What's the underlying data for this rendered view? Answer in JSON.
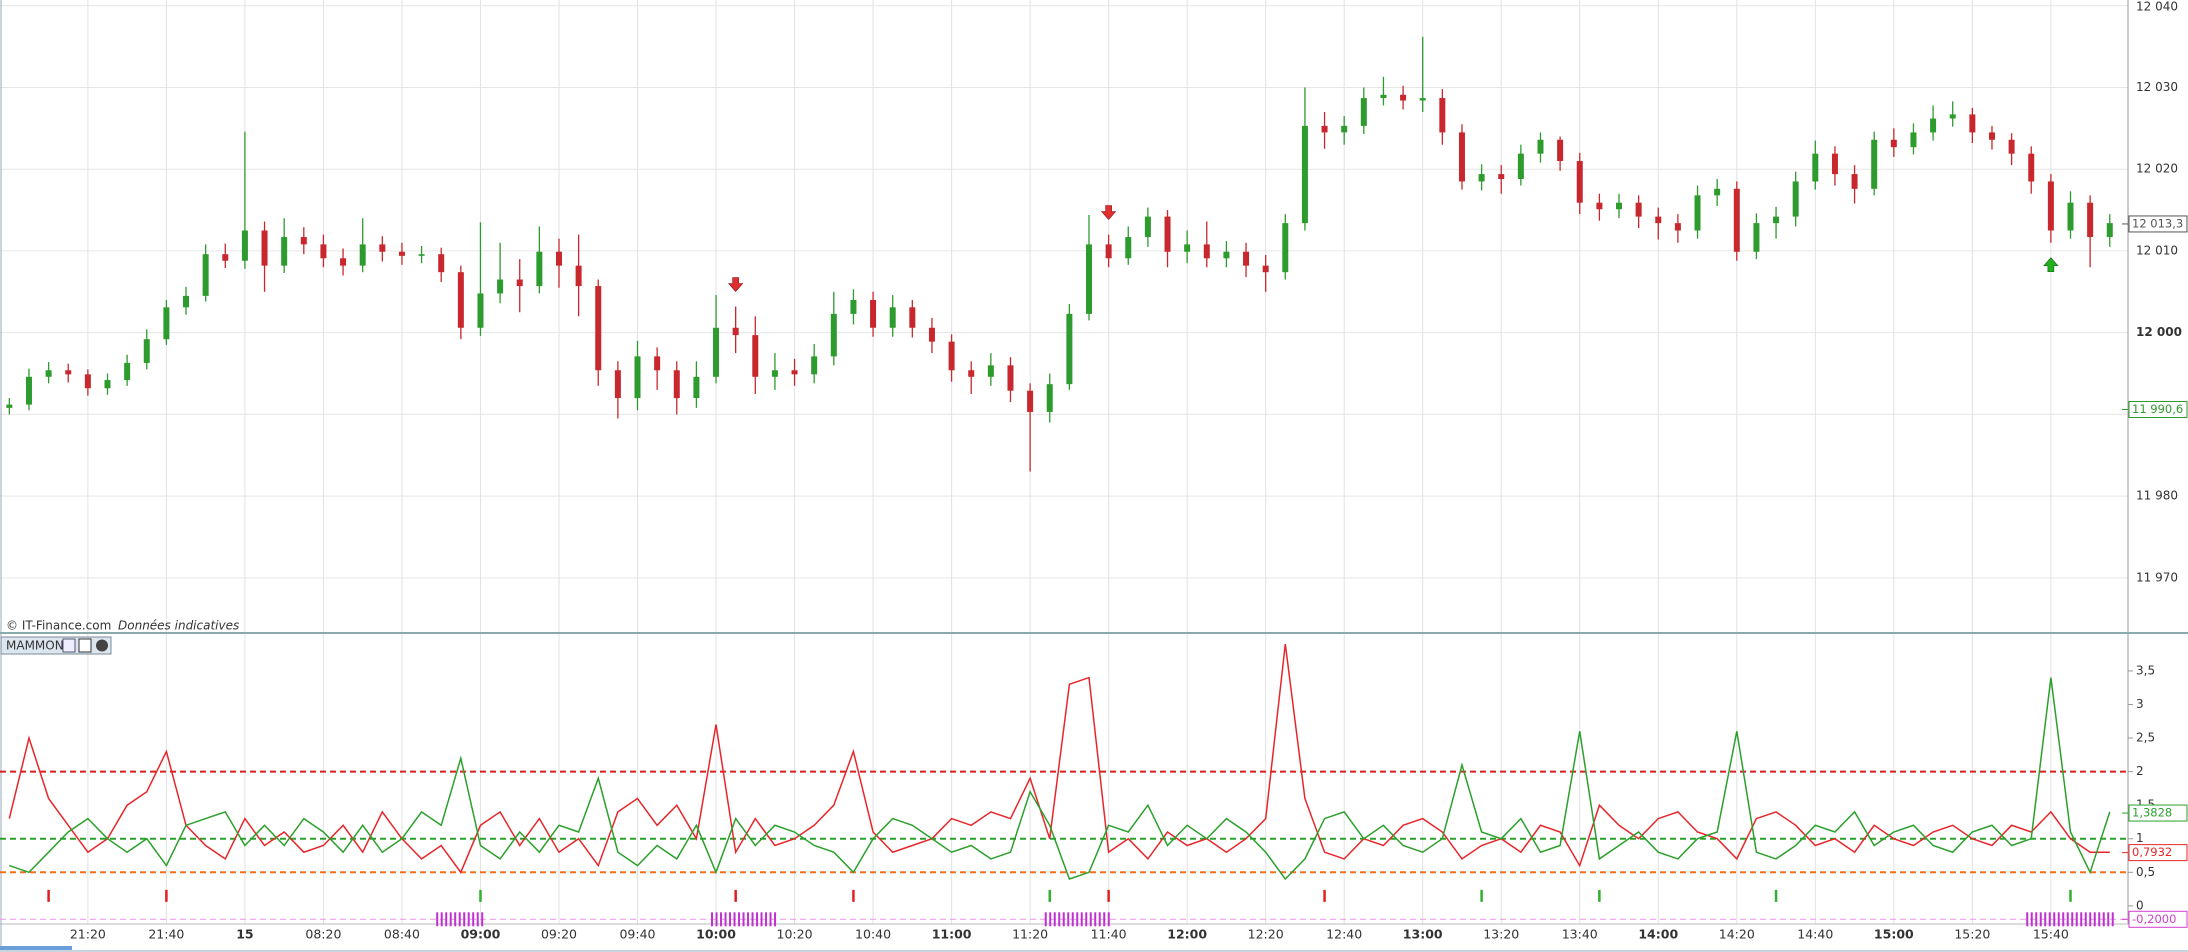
{
  "chart_data": [
    {
      "type": "candlestick",
      "copyright": "© IT-Finance.com",
      "disclaimer": "Données indicatives",
      "up_color": "#2e9b2e",
      "down_color": "#c8282d",
      "categories": [
        null,
        null,
        null,
        null,
        "21:20",
        null,
        null,
        null,
        "21:40",
        null,
        null,
        null,
        "15",
        null,
        null,
        null,
        "08:20",
        null,
        null,
        null,
        "08:40",
        null,
        null,
        null,
        "09:00",
        null,
        null,
        null,
        "09:20",
        null,
        null,
        null,
        "09:40",
        null,
        null,
        null,
        "10:00",
        null,
        null,
        null,
        "10:20",
        null,
        null,
        null,
        "10:40",
        null,
        null,
        null,
        "11:00",
        null,
        null,
        null,
        "11:20",
        null,
        null,
        null,
        "11:40",
        null,
        null,
        null,
        "12:00",
        null,
        null,
        null,
        "12:20",
        null,
        null,
        null,
        "12:40",
        null,
        null,
        null,
        "13:00",
        null,
        null,
        null,
        "13:20",
        null,
        null,
        null,
        "13:40",
        null,
        null,
        null,
        "14:00",
        null,
        null,
        null,
        "14:20",
        null,
        null,
        null,
        "14:40",
        null,
        null,
        null,
        "15:00",
        null,
        null,
        null,
        "15:20",
        null,
        null,
        null,
        "15:40",
        null,
        null,
        null
      ],
      "open": [
        11990.8,
        11991.2,
        11994.6,
        11995.4,
        11994.9,
        11993.2,
        11994.2,
        11996.3,
        11999.2,
        12003.1,
        12004.5,
        12009.6,
        12008.8,
        12012.5,
        12008.2,
        12011.7,
        12010.8,
        12009.1,
        12008.2,
        12010.8,
        12009.9,
        12009.4,
        12009.6,
        12007.4,
        12000.6,
        12004.8,
        12006.5,
        12005.7,
        12009.9,
        12008.2,
        12005.7,
        11995.4,
        11992.0,
        11997.1,
        11995.4,
        11992.0,
        11994.6,
        12000.6,
        11999.7,
        11994.6,
        11995.4,
        11994.9,
        11997.1,
        12002.3,
        12004.0,
        12000.6,
        12003.1,
        12000.6,
        11998.9,
        11995.4,
        11994.6,
        11996.0,
        11992.9,
        11990.3,
        11993.7,
        12002.3,
        12010.8,
        12009.1,
        12011.7,
        12014.2,
        12009.9,
        12010.8,
        12009.1,
        12009.9,
        12008.2,
        12007.4,
        12013.4,
        12025.3,
        12024.5,
        12025.3,
        12028.7,
        12029.1,
        12028.4,
        12028.7,
        12024.5,
        12018.5,
        12019.4,
        12018.8,
        12021.9,
        12023.6,
        12021.0,
        12015.9,
        12015.1,
        12015.9,
        12014.2,
        12013.4,
        12012.5,
        12016.8,
        12017.6,
        12009.9,
        12013.4,
        12014.2,
        12018.5,
        12021.9,
        12019.4,
        12017.6,
        12023.6,
        12022.7,
        12024.5,
        12026.2,
        12026.7,
        12024.5,
        12023.6,
        12021.9,
        12018.5,
        12012.5,
        12015.9,
        12011.7
      ],
      "high": [
        11992.0,
        11995.6,
        11996.4,
        11996.2,
        11995.5,
        11995.0,
        11997.3,
        12000.4,
        12004.0,
        12005.6,
        12010.8,
        12010.9,
        12024.6,
        12013.6,
        12014.0,
        12012.9,
        12012.0,
        12010.3,
        12014.0,
        12011.8,
        12011.0,
        12010.6,
        12010.4,
        12008.2,
        12013.5,
        12011.0,
        12009.0,
        12013.0,
        12011.5,
        12012.0,
        12006.5,
        11996.5,
        11999.0,
        11998.2,
        11996.5,
        11996.5,
        12004.6,
        12003.2,
        12002.0,
        11997.5,
        11996.8,
        11998.6,
        12005.0,
        12005.3,
        12005.0,
        12004.6,
        12004.0,
        12001.8,
        11999.8,
        11996.5,
        11997.5,
        11997.0,
        11993.8,
        11995.0,
        12003.5,
        12014.4,
        12012.0,
        12013.0,
        12015.3,
        12015.0,
        12012.5,
        12013.6,
        12011.2,
        12011.0,
        12009.5,
        12014.5,
        12030.0,
        12027.0,
        12026.5,
        12030.0,
        12031.3,
        12030.2,
        12036.2,
        12029.8,
        12025.5,
        12020.6,
        12020.5,
        12023.0,
        12024.5,
        12024.0,
        12022.0,
        12017.0,
        12017.0,
        12016.8,
        12015.3,
        12014.5,
        12018.0,
        12018.8,
        12018.5,
        12014.6,
        12015.4,
        12019.7,
        12023.5,
        12022.8,
        12020.5,
        12024.6,
        12025.0,
        12025.6,
        12027.8,
        12028.3,
        12027.5,
        12025.3,
        12024.4,
        12022.8,
        12019.4,
        12017.3,
        12016.8,
        12014.5
      ],
      "low": [
        11990.0,
        11990.5,
        11993.8,
        11993.9,
        11992.3,
        11992.4,
        11993.5,
        11995.5,
        11998.5,
        12002.2,
        12003.8,
        12007.9,
        12007.8,
        12005.0,
        12007.3,
        12009.6,
        12008.0,
        12007.0,
        12007.4,
        12008.7,
        12008.3,
        12008.5,
        12006.2,
        11999.2,
        11999.6,
        12003.6,
        12002.5,
        12004.8,
        12005.5,
        12002.0,
        11993.5,
        11989.5,
        11990.5,
        11993.0,
        11990.0,
        11990.8,
        11993.8,
        11997.5,
        11992.5,
        11993.0,
        11993.5,
        11993.8,
        11996.0,
        12001.0,
        11999.5,
        11999.5,
        11999.4,
        11997.5,
        11994.0,
        11992.5,
        11993.5,
        11991.5,
        11983.0,
        11989.0,
        11993.0,
        12001.5,
        12008.0,
        12008.3,
        12010.5,
        12008.0,
        12008.5,
        12008.0,
        12008.0,
        12006.8,
        12005.0,
        12006.5,
        12012.5,
        12022.5,
        12023.0,
        12024.3,
        12027.8,
        12027.3,
        12027.0,
        12023.0,
        12017.5,
        12017.4,
        12017.0,
        12018.0,
        12020.8,
        12019.8,
        12014.5,
        12013.7,
        12014.0,
        12012.8,
        12011.4,
        12011.0,
        12011.5,
        12015.5,
        12008.8,
        12009.0,
        12011.5,
        12013.0,
        12017.5,
        12018.0,
        12015.8,
        12016.8,
        12021.5,
        12021.8,
        12023.5,
        12025.2,
        12023.2,
        12022.4,
        12020.5,
        12017.0,
        12011.0,
        12011.5,
        12008.0,
        12010.5
      ],
      "close": [
        11991.2,
        11994.6,
        11995.4,
        11994.9,
        11993.2,
        11994.2,
        11996.3,
        11999.2,
        12003.1,
        12004.5,
        12009.6,
        12008.8,
        12012.5,
        12008.2,
        12011.7,
        12010.8,
        12009.1,
        12008.2,
        12010.8,
        12009.9,
        12009.4,
        12009.6,
        12007.4,
        12000.6,
        12004.8,
        12006.5,
        12005.7,
        12009.9,
        12008.2,
        12005.7,
        11995.4,
        11992.0,
        11997.1,
        11995.4,
        11992.0,
        11994.6,
        12000.6,
        11999.7,
        11994.6,
        11995.4,
        11994.9,
        11997.1,
        12002.3,
        12004.0,
        12000.6,
        12003.1,
        12000.6,
        11998.9,
        11995.4,
        11994.6,
        11996.0,
        11992.9,
        11990.3,
        11993.7,
        12002.3,
        12010.8,
        12009.1,
        12011.7,
        12014.2,
        12009.9,
        12010.8,
        12009.1,
        12009.9,
        12008.2,
        12007.4,
        12013.4,
        12025.3,
        12024.5,
        12025.3,
        12028.7,
        12029.1,
        12028.4,
        12028.7,
        12024.5,
        12018.5,
        12019.4,
        12018.8,
        12021.9,
        12023.6,
        12021.0,
        12015.9,
        12015.1,
        12015.9,
        12014.2,
        12013.4,
        12012.5,
        12016.8,
        12017.6,
        12009.9,
        12013.4,
        12014.2,
        12018.5,
        12021.9,
        12019.4,
        12017.6,
        12023.6,
        12022.7,
        12024.5,
        12026.2,
        12026.7,
        12024.5,
        12023.6,
        12021.9,
        12018.5,
        12012.5,
        12015.9,
        12011.7,
        12013.4
      ],
      "sell_signals": [
        37,
        56
      ],
      "buy_signals": [
        104
      ],
      "ylim": [
        11963.5,
        12040.7
      ],
      "yticks": [
        {
          "value": 11970,
          "label": "11 970"
        },
        {
          "value": 11980,
          "label": "11 980"
        },
        {
          "value": 11990,
          "label": "11 990"
        },
        {
          "value": 12000,
          "label": "12 000"
        },
        {
          "value": 12010,
          "label": "12 010"
        },
        {
          "value": 12020,
          "label": "12 020"
        },
        {
          "value": 12030,
          "label": "12 030"
        },
        {
          "value": 12040,
          "label": "12 040"
        }
      ],
      "price_tags": [
        {
          "value": 12013.3,
          "label": "12 013,3",
          "color": "#555555"
        },
        {
          "value": 11990.6,
          "label": "11 990,6",
          "color": "#2e9b2e"
        }
      ],
      "grid": true
    },
    {
      "type": "line",
      "title": "MAMMON",
      "series": [
        {
          "color": "#e8262a",
          "values": [
            1.3,
            2.5,
            1.6,
            1.2,
            0.8,
            1.0,
            1.5,
            1.7,
            2.3,
            1.2,
            0.9,
            0.7,
            1.3,
            0.9,
            1.1,
            0.8,
            0.9,
            1.2,
            0.8,
            1.4,
            1.0,
            0.7,
            0.9,
            0.5,
            1.2,
            1.4,
            0.9,
            1.3,
            0.8,
            1.0,
            0.6,
            1.4,
            1.6,
            1.2,
            1.5,
            1.0,
            2.7,
            0.8,
            1.3,
            0.9,
            1.0,
            1.2,
            1.5,
            2.3,
            1.1,
            0.8,
            0.9,
            1.0,
            1.3,
            1.2,
            1.4,
            1.3,
            1.9,
            1.0,
            3.3,
            3.4,
            0.8,
            1.0,
            0.7,
            1.1,
            0.9,
            1.0,
            0.8,
            1.0,
            1.3,
            3.9,
            1.6,
            0.8,
            0.7,
            1.0,
            0.9,
            1.2,
            1.3,
            1.1,
            0.7,
            0.9,
            1.0,
            0.8,
            1.2,
            1.1,
            0.6,
            1.5,
            1.2,
            1.0,
            1.3,
            1.4,
            1.1,
            1.0,
            0.7,
            1.3,
            1.4,
            1.2,
            0.9,
            1.0,
            0.8,
            1.2,
            1.0,
            0.9,
            1.1,
            1.2,
            1.0,
            0.9,
            1.2,
            1.1,
            1.4,
            1.0,
            0.8,
            0.8
          ]
        },
        {
          "color": "#2ca02c",
          "values": [
            0.6,
            0.5,
            0.8,
            1.1,
            1.3,
            1.0,
            0.8,
            1.0,
            0.6,
            1.2,
            1.3,
            1.4,
            0.9,
            1.2,
            0.9,
            1.3,
            1.1,
            0.8,
            1.2,
            0.8,
            1.0,
            1.4,
            1.2,
            2.2,
            0.9,
            0.7,
            1.1,
            0.8,
            1.2,
            1.1,
            1.9,
            0.8,
            0.6,
            0.9,
            0.7,
            1.2,
            0.5,
            1.3,
            0.9,
            1.2,
            1.1,
            0.9,
            0.8,
            0.5,
            1.0,
            1.3,
            1.2,
            1.0,
            0.8,
            0.9,
            0.7,
            0.8,
            1.7,
            1.2,
            0.4,
            0.5,
            1.2,
            1.1,
            1.5,
            0.9,
            1.2,
            1.0,
            1.3,
            1.1,
            0.8,
            0.4,
            0.7,
            1.3,
            1.4,
            1.0,
            1.2,
            0.9,
            0.8,
            1.0,
            2.1,
            1.1,
            1.0,
            1.3,
            0.8,
            0.9,
            2.6,
            0.7,
            0.9,
            1.1,
            0.8,
            0.7,
            1.0,
            1.1,
            2.6,
            0.8,
            0.7,
            0.9,
            1.2,
            1.1,
            1.4,
            0.9,
            1.1,
            1.2,
            0.9,
            0.8,
            1.1,
            1.2,
            0.9,
            1.0,
            3.4,
            1.1,
            0.5,
            1.4
          ]
        }
      ],
      "hlines": [
        {
          "value": 2,
          "color": "#d62020"
        },
        {
          "value": 1,
          "color": "#2ca02c"
        },
        {
          "value": 0.5,
          "color": "#f07020"
        },
        {
          "value": -0.2,
          "color": "#f0a0e8"
        }
      ],
      "value_tags": [
        {
          "value": 1.3828,
          "label": "1,3828",
          "color": "#2ca02c"
        },
        {
          "value": 0.7932,
          "label": "0,7932",
          "color": "#e8262a"
        },
        {
          "value": -0.2,
          "label": "-0,2000",
          "color": "#d040d0"
        }
      ],
      "red_ticks": [
        2,
        8,
        37,
        43,
        56,
        67
      ],
      "green_ticks": [
        24,
        53,
        75,
        81,
        90,
        105
      ],
      "magenta_ranges": [
        [
          22,
          24
        ],
        [
          36,
          39
        ],
        [
          53,
          56
        ],
        [
          103,
          107
        ]
      ],
      "ylim": [
        -0.27,
        4.02
      ],
      "yticks": [
        0,
        {
          "value": 0.5,
          "label": "0,5"
        },
        1,
        {
          "value": 1.5,
          "label": "1,5"
        },
        2,
        {
          "value": 2.5,
          "label": "2,5"
        },
        3,
        {
          "value": 3.5,
          "label": "3,5"
        }
      ]
    }
  ]
}
